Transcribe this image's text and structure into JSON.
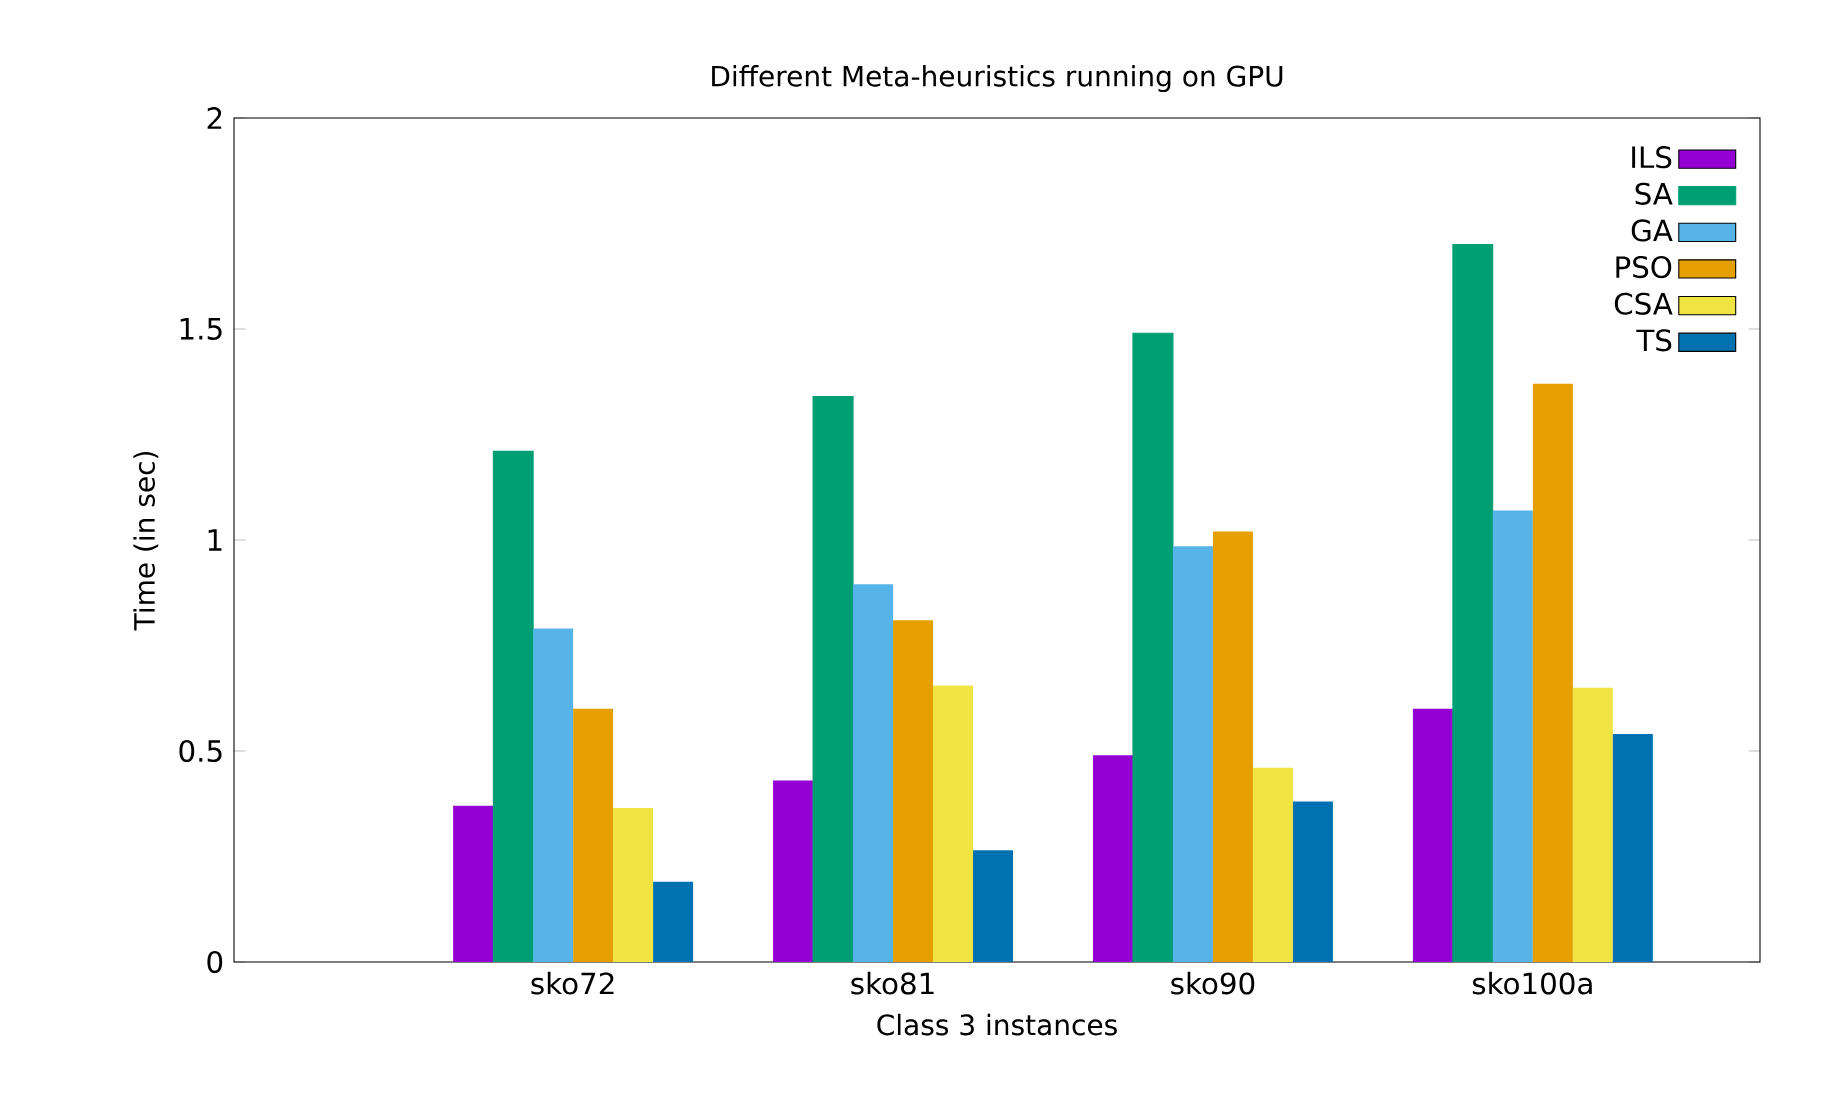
{
  "chart_data": {
    "type": "bar",
    "title": "Different Meta-heuristics running on GPU",
    "xlabel": "Class 3 instances",
    "ylabel": "Time (in sec)",
    "categories": [
      "sko72",
      "sko81",
      "sko90",
      "sko100a"
    ],
    "series": [
      {
        "name": "ILS",
        "color": "#9400d3",
        "values": [
          0.37,
          0.43,
          0.49,
          0.6
        ]
      },
      {
        "name": "SA",
        "color": "#009e73",
        "values": [
          1.21,
          1.34,
          1.49,
          1.7
        ]
      },
      {
        "name": "GA",
        "color": "#56b4e9",
        "values": [
          0.79,
          0.895,
          0.985,
          1.07
        ]
      },
      {
        "name": "PSO",
        "color": "#e69f00",
        "values": [
          0.6,
          0.81,
          1.02,
          1.37
        ]
      },
      {
        "name": "CSA",
        "color": "#f0e442",
        "values": [
          0.365,
          0.655,
          0.46,
          0.65
        ]
      },
      {
        "name": "TS",
        "color": "#0072b2",
        "values": [
          0.19,
          0.265,
          0.38,
          0.54
        ]
      }
    ],
    "ylim": [
      0,
      2
    ],
    "yticks": [
      0,
      0.5,
      1,
      1.5,
      2
    ],
    "grid": false,
    "legend": "top right"
  }
}
